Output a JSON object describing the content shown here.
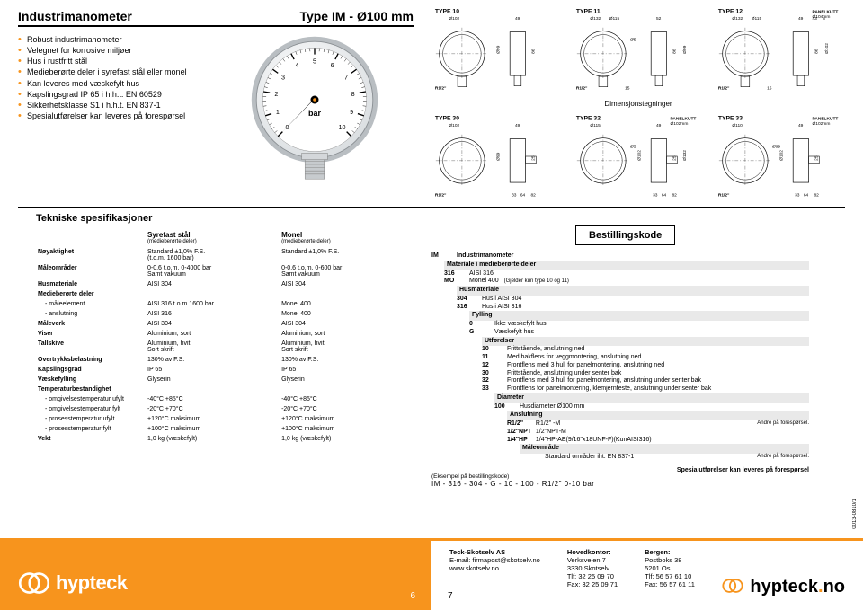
{
  "colors": {
    "accent": "#f7941d",
    "text": "#000000",
    "bg": "#ffffff",
    "shade": "#e9e9e9"
  },
  "header": {
    "title": "Industrimanometer",
    "type": "Type IM - Ø100 mm"
  },
  "bullets": [
    "Robust industrimanometer",
    "Velegnet for korrosive miljøer",
    "Hus i rustfritt stål",
    "Medieberørte deler i syrefast stål eller monel",
    "Kan leveres med væskefylt hus",
    "Kapslingsgrad IP 65 i h.h.t. EN 60529",
    "Sikkerhetsklasse S1 i h.h.t. EN 837-1",
    "Spesialutførelser kan leveres på forespørsel"
  ],
  "gauge": {
    "unit": "bar",
    "min": 0,
    "max": 10,
    "ticks": [
      0,
      1,
      2,
      3,
      4,
      5,
      6,
      7,
      8,
      9,
      10
    ],
    "face_bg": "#ffffff",
    "ring": "#cfd3d6",
    "needle": "#000000"
  },
  "drawings_caption": "Dimensjonstegninger",
  "drawings": {
    "row1": [
      {
        "name": "TYPE 10",
        "d_outer": "Ø102",
        "h": "49",
        "t": "86",
        "conn": "R1/2\"",
        "d2": "Ø99"
      },
      {
        "name": "TYPE 11",
        "d_outer": "Ø132",
        "d_mid": "Ø115",
        "h": "52",
        "t": "86",
        "conn": "R1/2\"",
        "c2": "15",
        "d3": "Ø5",
        "d4": "Ø99"
      },
      {
        "name": "TYPE 12",
        "d_outer": "Ø132",
        "d_mid": "Ø115",
        "d_pk": "Ø104mm",
        "pk": "PANELKUTT",
        "h": "49",
        "h2": "43",
        "h3": "8",
        "t": "86",
        "conn": "R1/2\"",
        "c2": "15",
        "d4": "Ø102"
      }
    ],
    "row2": [
      {
        "name": "TYPE 30",
        "d_outer": "Ø102",
        "h": "49",
        "t": "25",
        "t2": "86",
        "conn": "R1/2\"",
        "d2": "Ø99",
        "w": "33",
        "w2": "64",
        "w3": "82"
      },
      {
        "name": "TYPE 32",
        "pk": "PANELKUTT",
        "d_pk": "Ø102mm",
        "d_outer": "Ø115",
        "h": "49",
        "t": "25",
        "t2": "86",
        "d3": "Ø5",
        "d2": "Ø102",
        "d4": "Ø132",
        "w": "33",
        "w2": "64",
        "w3": "82"
      },
      {
        "name": "TYPE 33",
        "pk": "PANELKUTT",
        "d_pk": "Ø102mm",
        "d_outer": "Ø110",
        "h": "49",
        "t": "25",
        "t2": "86",
        "d2": "Ø102",
        "conn": "R1/2\"",
        "d3": "Ø99",
        "w": "33",
        "w2": "64",
        "w3": "82"
      }
    ]
  },
  "specs": {
    "title": "Tekniske spesifikasjoner",
    "col1": "Syrefast stål",
    "col1_sub": "(medieberørte deler)",
    "col2": "Monel",
    "col2_sub": "(medieberørte deler)",
    "rows": [
      {
        "label": "Nøyaktighet",
        "c1": "Standard ±1,0% F.S.\n(t.o.m. 1600 bar)",
        "c2": "Standard ±1,0% F.S."
      },
      {
        "label": "Måleområder",
        "c1": "0-0,6 t.o.m. 0-4000 bar\nSamt vakuum",
        "c2": "0-0,6 t.o.m. 0-600 bar\nSamt vakuum"
      },
      {
        "label": "Husmateriale",
        "c1": "AISI 304",
        "c2": "AISI 304"
      },
      {
        "label": "Medieberørte deler",
        "sublabels": [
          {
            "sl": "- måleelement",
            "c1": "AISI 316 t.o.m 1600 bar",
            "c2": "Monel 400"
          },
          {
            "sl": "- anslutning",
            "c1": "AISI 316",
            "c2": "Monel 400"
          }
        ]
      },
      {
        "label": "Måleverk",
        "c1": "AISI 304",
        "c2": "AISI 304"
      },
      {
        "label": "Viser",
        "c1": "Aluminium, sort",
        "c2": "Aluminium, sort"
      },
      {
        "label": "Tallskive",
        "c1": "Aluminium, hvit\nSort skrift",
        "c2": "Aluminium, hvit\nSort skrift"
      },
      {
        "label": "Overtrykksbelastning",
        "c1": "130% av F.S.",
        "c2": "130% av F.S."
      },
      {
        "label": "Kapslingsgrad",
        "c1": "IP 65",
        "c2": "IP 65"
      },
      {
        "label": "Væskefylling",
        "c1": "Glyserin",
        "c2": "Glyserin"
      },
      {
        "label": "Temperaturbestandighet",
        "sublabels": [
          {
            "sl": "- omgivelsestemperatur ufylt",
            "c1": "-40°C +85°C",
            "c2": "-40°C +85°C"
          },
          {
            "sl": "- omgivelsestemperatur fylt",
            "c1": "-20°C +70°C",
            "c2": "-20°C +70°C"
          },
          {
            "sl": "- prosesstemperatur ufylt",
            "c1": "+120°C maksimum",
            "c2": "+120°C maksimum"
          },
          {
            "sl": "- prosesstemperatur fylt",
            "c1": "+100°C maksimum",
            "c2": "+100°C maksimum"
          }
        ]
      },
      {
        "label": "Vekt",
        "c1": "1,0 kg (væskefylt)",
        "c2": "1,0 kg (væskefylt)"
      }
    ]
  },
  "order": {
    "title": "Bestillingskode",
    "root": {
      "code": "IM",
      "text": "Industrimanometer"
    },
    "groups": [
      {
        "lvl": 1,
        "head": "Materiale i medieberørte deler",
        "items": [
          {
            "code": "316",
            "text": "AISI 316"
          },
          {
            "code": "MO",
            "text": "Monel 400",
            "note": "(Gjelder kun type 10 og 11)"
          }
        ]
      },
      {
        "lvl": 2,
        "head": "Husmateriale",
        "items": [
          {
            "code": "304",
            "text": "Hus i AISI 304"
          },
          {
            "code": "316",
            "text": "Hus i AISI 316"
          }
        ]
      },
      {
        "lvl": 3,
        "head": "Fylling",
        "items": [
          {
            "code": "0",
            "text": "Ikke væskefylt hus"
          },
          {
            "code": "G",
            "text": "Væskefylt hus"
          }
        ]
      },
      {
        "lvl": 4,
        "head": "Utførelser",
        "items": [
          {
            "code": "10",
            "text": "Frittstående, anslutning ned"
          },
          {
            "code": "11",
            "text": "Med bakflens for veggmontering, anslutning ned"
          },
          {
            "code": "12",
            "text": "Frontflens med 3 hull for panelmontering, anslutning ned"
          },
          {
            "code": "30",
            "text": "Frittstående, anslutning under senter bak"
          },
          {
            "code": "32",
            "text": "Frontflens med 3 hull for panelmontering, anslutning under senter bak"
          },
          {
            "code": "33",
            "text": "Frontflens for panelmontering, klemjernfeste, anslutning under senter bak"
          }
        ]
      },
      {
        "lvl": 5,
        "head": "Diameter",
        "items": [
          {
            "code": "100",
            "text": "Husdiameter Ø100 mm"
          }
        ]
      },
      {
        "lvl": 6,
        "head": "Anslutning",
        "items": [
          {
            "code": "R1/2\"",
            "text": "",
            "extra": "R1/2\" -M",
            "note2": "Andre på forespørsel."
          },
          {
            "code": "1/2\"NPT",
            "text": "",
            "extra": "1/2\"NPT-M"
          },
          {
            "code": "1/4\"HP",
            "text": "",
            "extra": "1/4\"HP-AE(9/16\"x18UNF-F)(KunAISI316)"
          }
        ]
      },
      {
        "lvl": 7,
        "head": "Måleområde",
        "items": [
          {
            "code": "",
            "text": "Standard områder iht. EN 837-1",
            "note2": "Andre på forespørsel."
          }
        ]
      }
    ],
    "example_label": "(Eksempel på bestillingskode)",
    "example": "IM  -  316 - 304  -  G  -  10  -  100  -  R1/2\"     0-10 bar",
    "footer_note": "Spesialutførelser kan leveres på forespørsel"
  },
  "side_code": "0013-0810/1",
  "footer": {
    "page_left": "6",
    "page_right": "7",
    "brand": "hypteck",
    "brand_url": "hypteck.no",
    "contacts": [
      {
        "hd": "Teck-Skotselv AS",
        "lines": [
          "E-mail: firmapost@skotselv.no",
          "www.skotselv.no"
        ]
      },
      {
        "hd": "Hovedkontor:",
        "lines": [
          "Verksveien 7",
          "3330 Skotselv",
          "Tlf:  32 25 09 70",
          "Fax: 32 25 09 71"
        ]
      },
      {
        "hd": "Bergen:",
        "lines": [
          "Postboks 38",
          "5201 Os",
          "Tlf:  56 57 61 10",
          "Fax: 56 57 61 11"
        ]
      }
    ]
  }
}
